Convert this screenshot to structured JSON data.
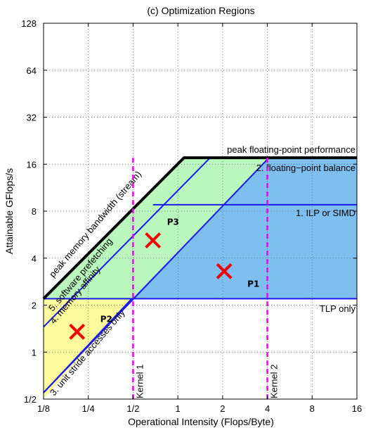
{
  "chart_data": {
    "type": "roofline",
    "title": "(c) Optimization Regions",
    "xlabel": "Operational Intensity (Flops/Byte)",
    "ylabel": "Attainable GFlops/s",
    "xscale": "log2",
    "yscale": "log2",
    "xlim": [
      0.125,
      16
    ],
    "ylim": [
      0.5,
      128
    ],
    "xticks": [
      0.125,
      0.25,
      0.5,
      1,
      2,
      4,
      8,
      16
    ],
    "xtick_labels": [
      "1/8",
      "1/4",
      "1/2",
      "1",
      "2",
      "4",
      "8",
      "16"
    ],
    "yticks": [
      0.5,
      1,
      2,
      4,
      8,
      16,
      32,
      64,
      128
    ],
    "ytick_labels": [
      "1/2",
      "1",
      "2",
      "4",
      "8",
      "16",
      "32",
      "64",
      "128"
    ],
    "grid": true,
    "roof": {
      "peak_flops": 17.6,
      "peak_bandwidth_label": "peak memory bandwidth (stream)",
      "peak_flops_label": "peak floating-point performance"
    },
    "ceilings": [
      {
        "label": "2. floating−point balance",
        "kind": "compute",
        "from": [
          1.6,
          17.6
        ],
        "to": [
          16,
          17.6
        ]
      },
      {
        "label": "1. ILP or SIMD",
        "kind": "compute",
        "value": 8.8
      },
      {
        "label": "TLP only",
        "kind": "compute",
        "value": 2.2
      },
      {
        "label": "5. software prefetching",
        "kind": "bandwidth",
        "from": [
          0.125,
          1.45
        ],
        "to": [
          1.65,
          17.6
        ]
      },
      {
        "label": "4. memory affinity",
        "kind": "bandwidth",
        "from": [
          0.125,
          0.55
        ],
        "to": [
          4.1,
          17.6
        ]
      },
      {
        "label": "3. unit stride accesses only",
        "kind": "bandwidth",
        "from": [
          0.125,
          0.55
        ],
        "to": [
          0.49,
          2.2
        ]
      }
    ],
    "kernels": [
      {
        "label": "Kernel 1",
        "x": 0.5
      },
      {
        "label": "Kernel 2",
        "x": 4
      }
    ],
    "points": [
      {
        "label": "P1",
        "x": 2.05,
        "y": 3.3
      },
      {
        "label": "P2",
        "x": 0.21,
        "y": 1.35
      },
      {
        "label": "P3",
        "x": 0.68,
        "y": 5.2
      }
    ],
    "colors": {
      "roof": "#000000",
      "ceiling": "#1a1aee",
      "kernel": "#ee00ee",
      "marker": "#ee0000",
      "region_compute": "#7fbff0",
      "region_memory": "#b9f7bd",
      "region_both": "#fbfb9e"
    }
  }
}
